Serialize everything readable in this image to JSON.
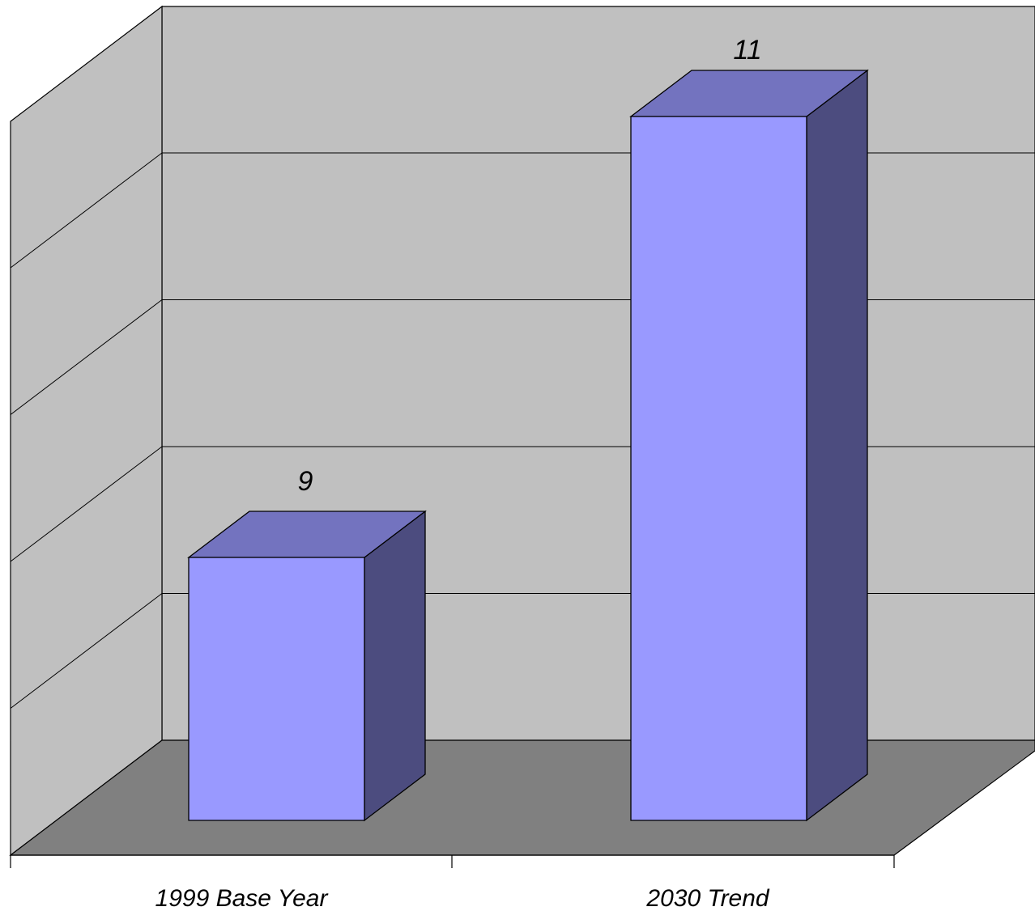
{
  "chart_data": {
    "type": "bar",
    "title": "",
    "xlabel": "",
    "ylabel": "",
    "categories": [
      "1999 Base Year",
      "2030 Trend"
    ],
    "values": [
      9,
      11
    ],
    "data_labels": [
      "9",
      "11"
    ],
    "ylim": [
      8,
      11.5
    ],
    "grid": true,
    "legend": "none",
    "style": "3d-column",
    "colors": {
      "wall": "#c0c0c0",
      "floor": "#808080",
      "bar_front": "#9999ff",
      "bar_top": "#7373bf",
      "bar_side": "#4c4c7f",
      "outline": "#000000"
    }
  }
}
